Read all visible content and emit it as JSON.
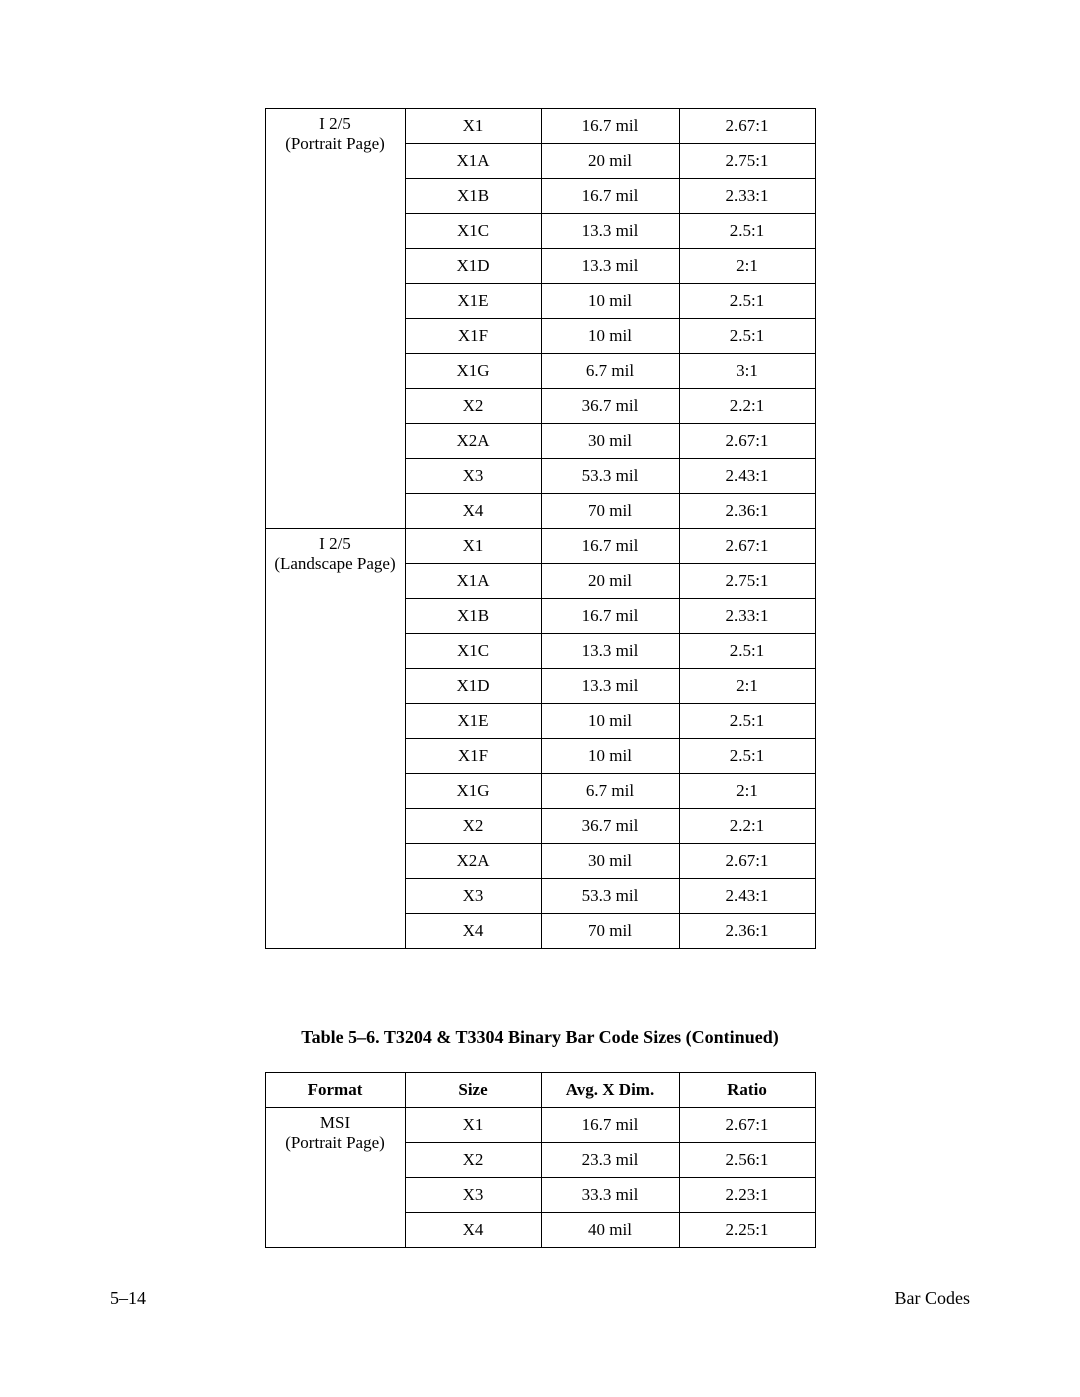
{
  "table1": {
    "groups": [
      {
        "label_line1": "I 2/5",
        "label_line2": "(Portrait Page)",
        "rows": [
          {
            "size": "X1",
            "dim": "16.7 mil",
            "ratio": "2.67:1"
          },
          {
            "size": "X1A",
            "dim": "20 mil",
            "ratio": "2.75:1"
          },
          {
            "size": "X1B",
            "dim": "16.7 mil",
            "ratio": "2.33:1"
          },
          {
            "size": "X1C",
            "dim": "13.3 mil",
            "ratio": "2.5:1"
          },
          {
            "size": "X1D",
            "dim": "13.3 mil",
            "ratio": "2:1"
          },
          {
            "size": "X1E",
            "dim": "10 mil",
            "ratio": "2.5:1"
          },
          {
            "size": "X1F",
            "dim": "10 mil",
            "ratio": "2.5:1"
          },
          {
            "size": "X1G",
            "dim": "6.7 mil",
            "ratio": "3:1"
          },
          {
            "size": "X2",
            "dim": "36.7 mil",
            "ratio": "2.2:1"
          },
          {
            "size": "X2A",
            "dim": "30 mil",
            "ratio": "2.67:1"
          },
          {
            "size": "X3",
            "dim": "53.3 mil",
            "ratio": "2.43:1"
          },
          {
            "size": "X4",
            "dim": "70 mil",
            "ratio": "2.36:1"
          }
        ]
      },
      {
        "label_line1": "I 2/5",
        "label_line2": "(Landscape Page)",
        "rows": [
          {
            "size": "X1",
            "dim": "16.7 mil",
            "ratio": "2.67:1"
          },
          {
            "size": "X1A",
            "dim": "20 mil",
            "ratio": "2.75:1"
          },
          {
            "size": "X1B",
            "dim": "16.7 mil",
            "ratio": "2.33:1"
          },
          {
            "size": "X1C",
            "dim": "13.3 mil",
            "ratio": "2.5:1"
          },
          {
            "size": "X1D",
            "dim": "13.3 mil",
            "ratio": "2:1"
          },
          {
            "size": "X1E",
            "dim": "10 mil",
            "ratio": "2.5:1"
          },
          {
            "size": "X1F",
            "dim": "10 mil",
            "ratio": "2.5:1"
          },
          {
            "size": "X1G",
            "dim": "6.7 mil",
            "ratio": "2:1"
          },
          {
            "size": "X2",
            "dim": "36.7 mil",
            "ratio": "2.2:1"
          },
          {
            "size": "X2A",
            "dim": "30 mil",
            "ratio": "2.67:1"
          },
          {
            "size": "X3",
            "dim": "53.3 mil",
            "ratio": "2.43:1"
          },
          {
            "size": "X4",
            "dim": "70 mil",
            "ratio": "2.36:1"
          }
        ]
      }
    ]
  },
  "table2": {
    "caption": "Table 5–6. T3204 & T3304 Binary Bar Code Sizes (Continued)",
    "headers": {
      "format": "Format",
      "size": "Size",
      "dim": "Avg. X Dim.",
      "ratio": "Ratio"
    },
    "groups": [
      {
        "label_line1": "MSI",
        "label_line2": "(Portrait Page)",
        "rows": [
          {
            "size": "X1",
            "dim": "16.7 mil",
            "ratio": "2.67:1"
          },
          {
            "size": "X2",
            "dim": "23.3 mil",
            "ratio": "2.56:1"
          },
          {
            "size": "X3",
            "dim": "33.3 mil",
            "ratio": "2.23:1"
          },
          {
            "size": "X4",
            "dim": "40 mil",
            "ratio": "2.25:1"
          }
        ]
      }
    ]
  },
  "footer": {
    "page_num": "5–14",
    "section": "Bar Codes"
  }
}
